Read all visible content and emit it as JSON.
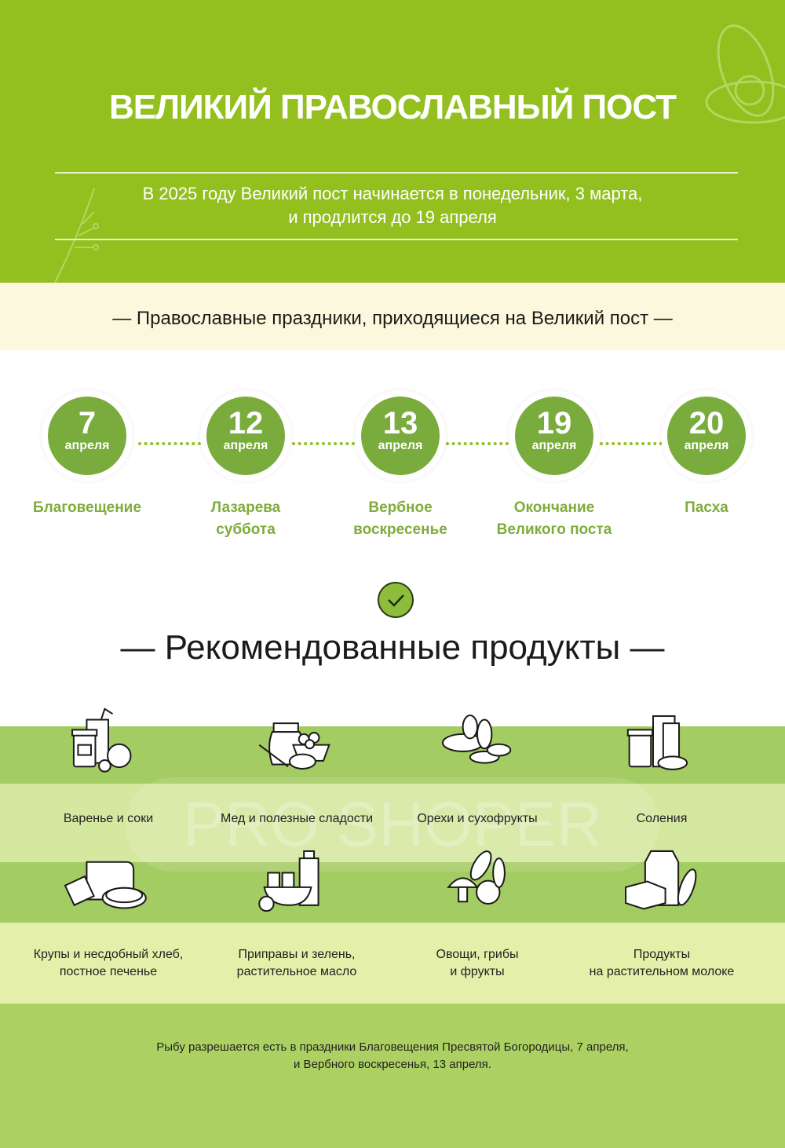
{
  "header": {
    "title": "ВЕЛИКИЙ ПРАВОСЛАВНЫЙ ПОСТ",
    "subtitle_line1": "В 2025 году Великий пост начинается в понедельник, 3 марта,",
    "subtitle_line2": "и продлится до 19 апреля"
  },
  "holidays": {
    "title": "— Православные праздники, приходящиеся на Великий пост —",
    "items": [
      {
        "day": "7",
        "month": "апреля",
        "line1": "Благовещение",
        "line2": ""
      },
      {
        "day": "12",
        "month": "апреля",
        "line1": "Лазарева",
        "line2": "суббота"
      },
      {
        "day": "13",
        "month": "апреля",
        "line1": "Вербное",
        "line2": "воскресенье"
      },
      {
        "day": "19",
        "month": "апреля",
        "line1": "Окончание",
        "line2": "Великого поста"
      },
      {
        "day": "20",
        "month": "апреля",
        "line1": "Пасха",
        "line2": ""
      }
    ]
  },
  "products": {
    "title": "— Рекомендованные продукты —",
    "check_icon": "checkmark-icon",
    "items": [
      {
        "icon": "jam-juice-icon",
        "line1": "Варенье и соки",
        "line2": ""
      },
      {
        "icon": "honey-sweets-icon",
        "line1": "Мед и полезные сладости",
        "line2": ""
      },
      {
        "icon": "nuts-dried-fruit-icon",
        "line1": "Орехи и сухофрукты",
        "line2": ""
      },
      {
        "icon": "pickles-icon",
        "line1": "Соления",
        "line2": ""
      },
      {
        "icon": "bread-cereal-icon",
        "line1": "Крупы и несдобный хлеб,",
        "line2": "постное печенье"
      },
      {
        "icon": "spices-oil-icon",
        "line1": "Приправы и зелень,",
        "line2": "растительное масло"
      },
      {
        "icon": "vegetables-mushrooms-icon",
        "line1": "Овощи, грибы",
        "line2": "и фрукты"
      },
      {
        "icon": "plant-milk-icon",
        "line1": "Продукты",
        "line2": "на растительном молоке"
      }
    ]
  },
  "note": {
    "line1": "Рыбу разрешается есть в праздники Благовещения Пресвятой Богородицы, 7 апреля,",
    "line2": "и Вербного воскресенья, 13 апреля."
  },
  "watermark": "PRO SHOPER",
  "colors": {
    "header": "#93c01f",
    "accent": "#7aab3d",
    "band_dark": "#a3cc62",
    "band_light": "#e4efaa",
    "footer": "#acd162",
    "cream": "#fbf8dd"
  }
}
